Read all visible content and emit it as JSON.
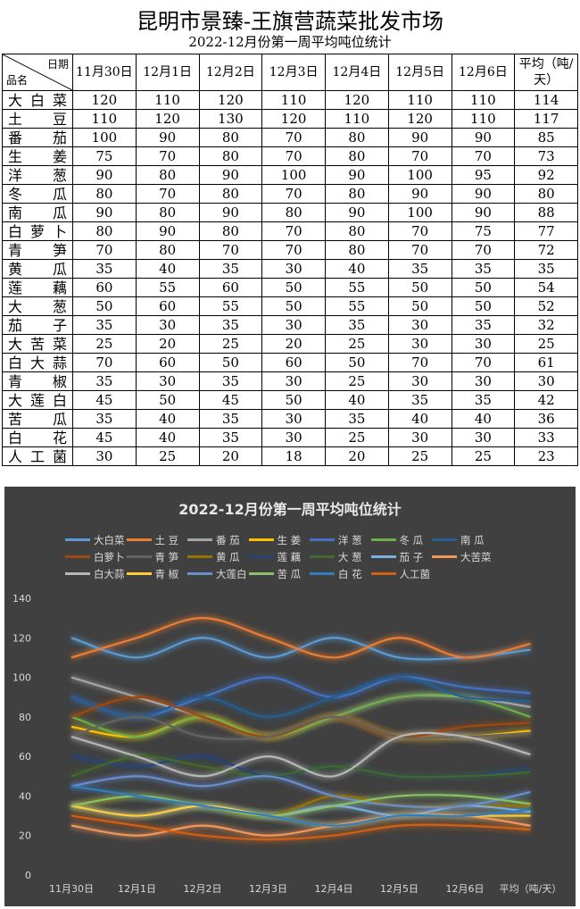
{
  "title": "昆明市景臻-王旗营蔬菜批发市场",
  "subtitle": "2022-12月份第一周平均吨位统计",
  "table": {
    "corner_date": "日期",
    "corner_name": "品名",
    "columns": [
      "11月30日",
      "12月1日",
      "12月2日",
      "12月3日",
      "12月4日",
      "12月5日",
      "12月6日",
      "平均（吨/天）"
    ],
    "rows": [
      {
        "name": "大白菜",
        "values": [
          120,
          110,
          120,
          110,
          120,
          110,
          110,
          114
        ]
      },
      {
        "name": "土豆",
        "values": [
          110,
          120,
          130,
          120,
          110,
          120,
          110,
          117
        ]
      },
      {
        "name": "番茄",
        "values": [
          100,
          90,
          80,
          70,
          80,
          90,
          90,
          85
        ]
      },
      {
        "name": "生姜",
        "values": [
          75,
          70,
          80,
          70,
          80,
          70,
          70,
          73
        ]
      },
      {
        "name": "洋葱",
        "values": [
          90,
          80,
          90,
          100,
          90,
          100,
          95,
          92
        ]
      },
      {
        "name": "冬瓜",
        "values": [
          80,
          70,
          80,
          70,
          80,
          90,
          90,
          80
        ]
      },
      {
        "name": "南瓜",
        "values": [
          90,
          80,
          90,
          80,
          90,
          100,
          90,
          88
        ]
      },
      {
        "name": "白萝卜",
        "values": [
          80,
          90,
          80,
          70,
          80,
          70,
          75,
          77
        ]
      },
      {
        "name": "青笋",
        "values": [
          70,
          80,
          70,
          70,
          80,
          70,
          70,
          72
        ]
      },
      {
        "name": "黄瓜",
        "values": [
          35,
          40,
          35,
          30,
          40,
          35,
          35,
          35
        ]
      },
      {
        "name": "莲藕",
        "values": [
          60,
          55,
          60,
          50,
          55,
          50,
          50,
          54
        ]
      },
      {
        "name": "大葱",
        "values": [
          50,
          60,
          55,
          50,
          55,
          50,
          50,
          52
        ]
      },
      {
        "name": "茄子",
        "values": [
          35,
          30,
          35,
          30,
          35,
          30,
          35,
          32
        ]
      },
      {
        "name": "大苦菜",
        "values": [
          25,
          20,
          25,
          20,
          25,
          30,
          30,
          25
        ]
      },
      {
        "name": "白大蒜",
        "values": [
          70,
          60,
          50,
          60,
          50,
          70,
          70,
          61
        ]
      },
      {
        "name": "青椒",
        "values": [
          35,
          30,
          35,
          30,
          25,
          30,
          30,
          30
        ]
      },
      {
        "name": "大莲白",
        "values": [
          45,
          50,
          45,
          50,
          40,
          35,
          35,
          42
        ]
      },
      {
        "name": "苦瓜",
        "values": [
          35,
          40,
          35,
          30,
          35,
          40,
          40,
          36
        ]
      },
      {
        "name": "白花",
        "values": [
          45,
          40,
          35,
          30,
          25,
          30,
          30,
          33
        ]
      },
      {
        "name": "人工菌",
        "values": [
          30,
          25,
          20,
          18,
          20,
          25,
          25,
          23
        ]
      }
    ]
  },
  "chart_data": {
    "type": "line",
    "title": "2022-12月份第一周平均吨位统计",
    "categories": [
      "11月30日",
      "12月1日",
      "12月2日",
      "12月3日",
      "12月4日",
      "12月5日",
      "12月6日",
      "平均（吨/天）"
    ],
    "ylim": [
      0,
      140
    ],
    "yticks": [
      "0",
      "20",
      "40",
      "60",
      "80",
      "100",
      "120",
      "140"
    ],
    "grid": false,
    "legend_position": "top",
    "series": [
      {
        "name": "大白菜",
        "color": "#5B9BD5",
        "values": [
          120,
          110,
          120,
          110,
          120,
          110,
          110,
          114
        ]
      },
      {
        "name": "土 豆",
        "color": "#ED7D31",
        "values": [
          110,
          120,
          130,
          120,
          110,
          120,
          110,
          117
        ]
      },
      {
        "name": "番 茄",
        "color": "#A5A5A5",
        "values": [
          100,
          90,
          80,
          70,
          80,
          90,
          90,
          85
        ]
      },
      {
        "name": "生 姜",
        "color": "#FFC000",
        "values": [
          75,
          70,
          80,
          70,
          80,
          70,
          70,
          73
        ]
      },
      {
        "name": "洋 葱",
        "color": "#4472C4",
        "values": [
          90,
          80,
          90,
          100,
          90,
          100,
          95,
          92
        ]
      },
      {
        "name": "冬 瓜",
        "color": "#70AD47",
        "values": [
          80,
          70,
          80,
          70,
          80,
          90,
          90,
          80
        ]
      },
      {
        "name": "南 瓜",
        "color": "#255E91",
        "values": [
          90,
          80,
          90,
          80,
          90,
          100,
          90,
          88
        ]
      },
      {
        "name": "白萝卜",
        "color": "#9E480E",
        "values": [
          80,
          90,
          80,
          70,
          80,
          70,
          75,
          77
        ]
      },
      {
        "name": "青 笋",
        "color": "#636363",
        "values": [
          70,
          80,
          70,
          70,
          80,
          70,
          70,
          72
        ]
      },
      {
        "name": "黄 瓜",
        "color": "#997300",
        "values": [
          35,
          40,
          35,
          30,
          40,
          35,
          35,
          35
        ]
      },
      {
        "name": "莲 藕",
        "color": "#264478",
        "values": [
          60,
          55,
          60,
          50,
          55,
          50,
          50,
          54
        ]
      },
      {
        "name": "大 葱",
        "color": "#43682B",
        "values": [
          50,
          60,
          55,
          50,
          55,
          50,
          50,
          52
        ]
      },
      {
        "name": "茄 子",
        "color": "#7CAFDD",
        "values": [
          35,
          30,
          35,
          30,
          35,
          30,
          35,
          32
        ]
      },
      {
        "name": "大苦菜",
        "color": "#F1975A",
        "values": [
          25,
          20,
          25,
          20,
          25,
          30,
          30,
          25
        ]
      },
      {
        "name": "白大蒜",
        "color": "#B7B7B7",
        "values": [
          70,
          60,
          50,
          60,
          50,
          70,
          70,
          61
        ]
      },
      {
        "name": "青 椒",
        "color": "#FFCD33",
        "values": [
          35,
          30,
          35,
          30,
          25,
          30,
          30,
          30
        ]
      },
      {
        "name": "大莲白",
        "color": "#698ED0",
        "values": [
          45,
          50,
          45,
          50,
          40,
          35,
          35,
          42
        ]
      },
      {
        "name": "苦 瓜",
        "color": "#8CC168",
        "values": [
          35,
          40,
          35,
          30,
          35,
          40,
          40,
          36
        ]
      },
      {
        "name": "白 花",
        "color": "#327DC2",
        "values": [
          45,
          40,
          35,
          30,
          25,
          30,
          30,
          33
        ]
      },
      {
        "name": "人工菌",
        "color": "#D26012",
        "values": [
          30,
          25,
          20,
          18,
          20,
          25,
          25,
          23
        ]
      }
    ]
  }
}
